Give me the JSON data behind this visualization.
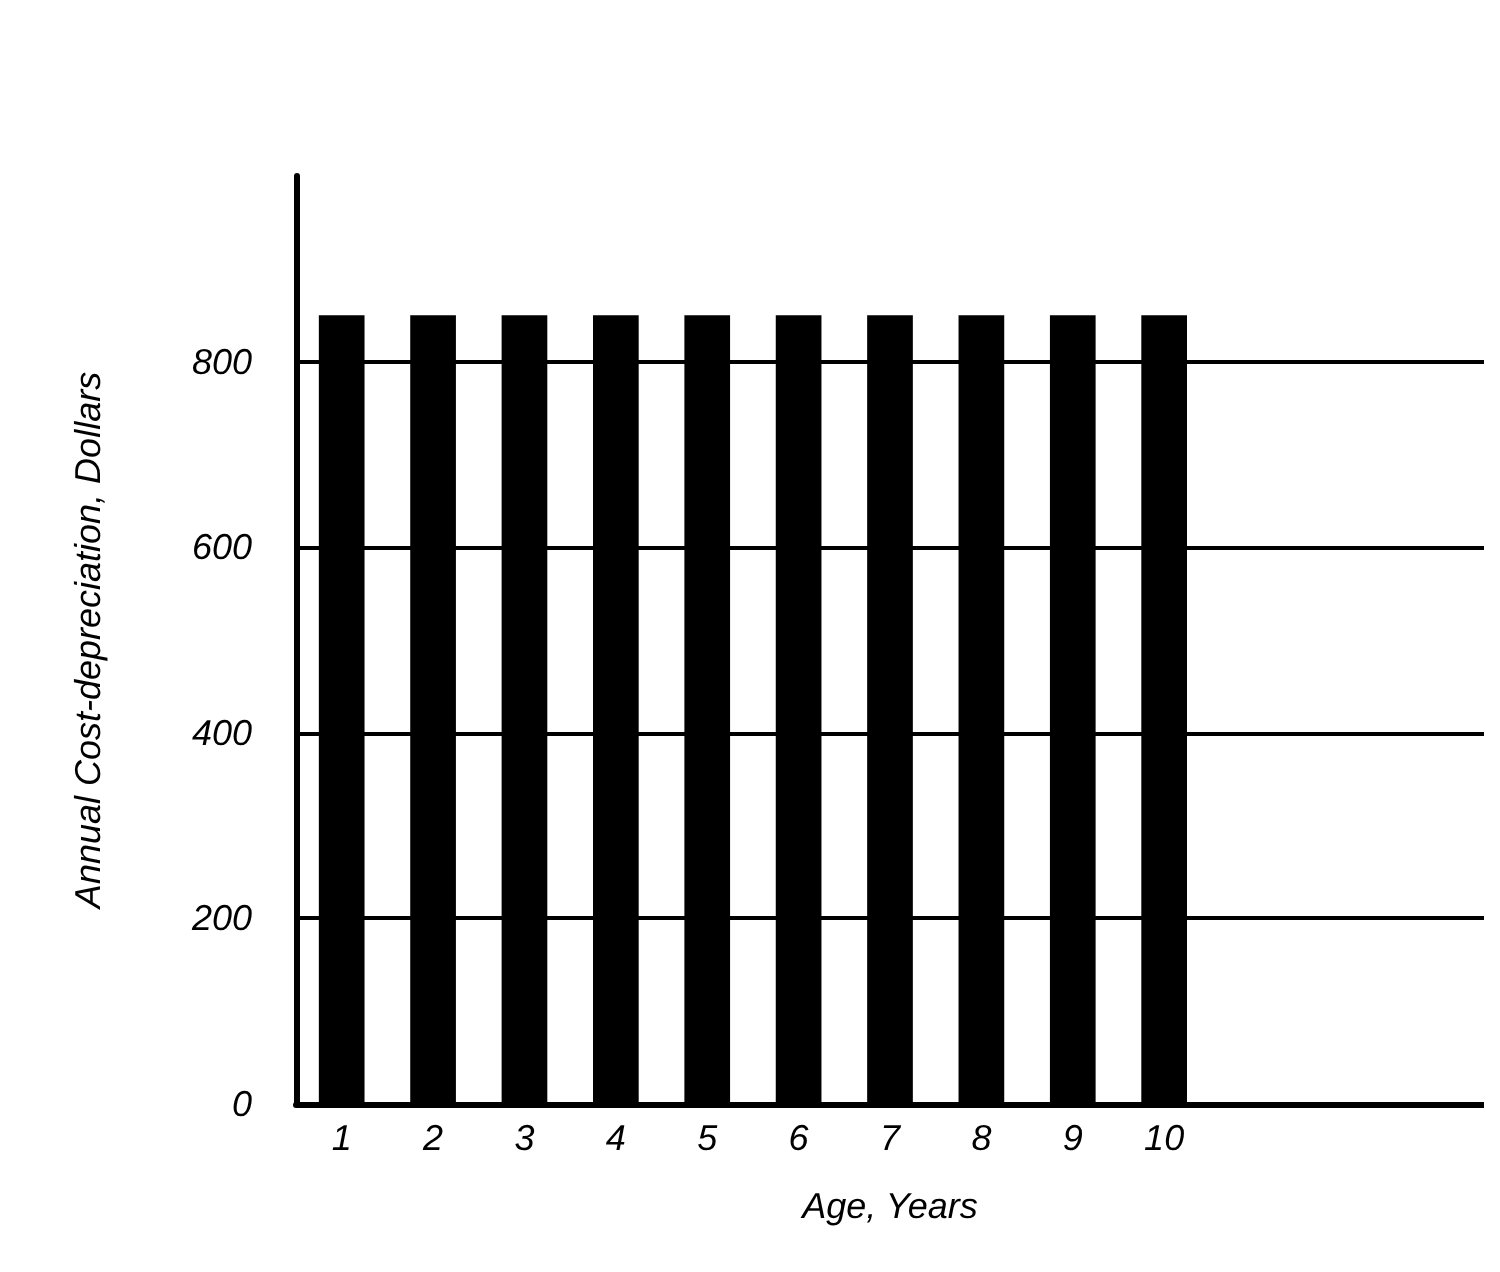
{
  "chart_data": {
    "type": "bar",
    "xlabel": "Age, Years",
    "ylabel": "Annual Cost-depreciation, Dollars",
    "categories": [
      "1",
      "2",
      "3",
      "4",
      "5",
      "6",
      "7",
      "8",
      "9",
      "10",
      null,
      null,
      null
    ],
    "values": [
      850,
      850,
      850,
      850,
      850,
      850,
      850,
      850,
      850,
      850,
      null,
      null,
      null
    ],
    "color": "#000000",
    "ylim": [
      0,
      1000
    ],
    "yticks": [
      0,
      200,
      400,
      600,
      800
    ],
    "grid": "y"
  }
}
